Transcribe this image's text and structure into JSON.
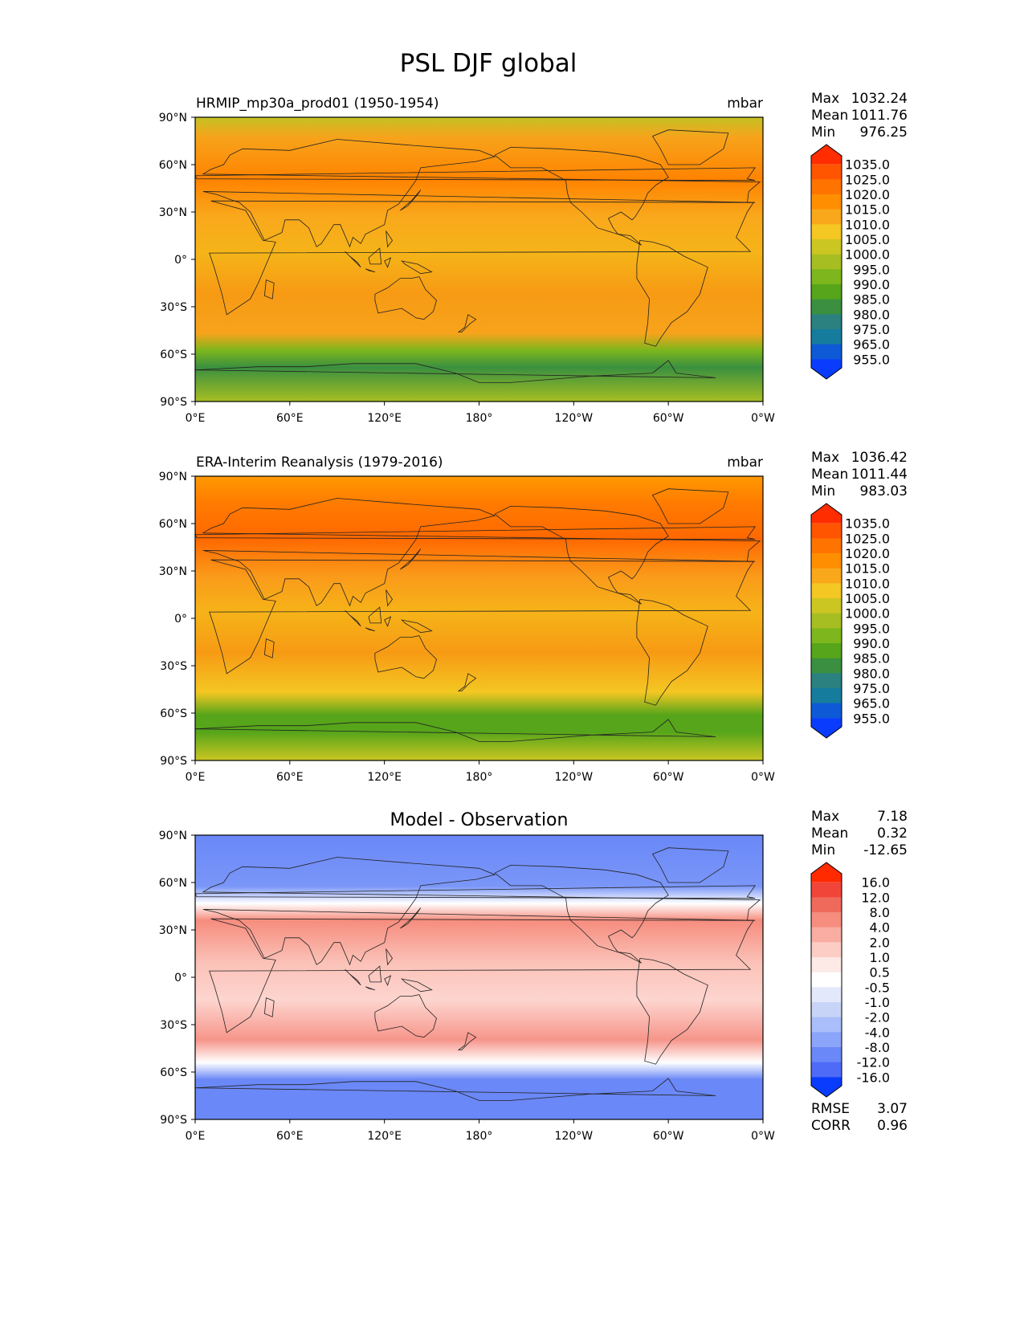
{
  "figure_title": "PSL DJF global",
  "chart_data": [
    {
      "type": "heatmap",
      "title": "HRMIP_mp30a_prod01 (1950-1954)",
      "units": "mbar",
      "stats": {
        "max": "1032.24",
        "mean": "1011.76",
        "min": "976.25"
      },
      "stat_labels": {
        "max": "Max",
        "mean": "Mean",
        "min": "Min"
      },
      "xticks": [
        "0°E",
        "60°E",
        "120°E",
        "180°",
        "120°W",
        "60°W",
        "0°W"
      ],
      "yticks": [
        "90°N",
        "60°N",
        "30°N",
        "0°",
        "30°S",
        "60°S",
        "90°S"
      ],
      "x_range": [
        0,
        360
      ],
      "y_range": [
        -90,
        90
      ],
      "colorbar": {
        "levels": [
          "1035.0",
          "1025.0",
          "1020.0",
          "1015.0",
          "1010.0",
          "1005.0",
          "1000.0",
          "995.0",
          "990.0",
          "985.0",
          "980.0",
          "975.0",
          "965.0",
          "955.0"
        ]
      },
      "colors": [
        "#ff2d00",
        "#ff5500",
        "#ff7400",
        "#ff8f00",
        "#f9a81c",
        "#f4c722",
        "#ccc622",
        "#a7be22",
        "#7db61d",
        "#56a51a",
        "#3a9040",
        "#2b8080",
        "#157c9e",
        "#0e5ad6",
        "#0a3cfd"
      ]
    },
    {
      "type": "heatmap",
      "title": "ERA-Interim Reanalysis (1979-2016)",
      "units": "mbar",
      "stats": {
        "max": "1036.42",
        "mean": "1011.44",
        "min": "983.03"
      },
      "stat_labels": {
        "max": "Max",
        "mean": "Mean",
        "min": "Min"
      },
      "xticks": [
        "0°E",
        "60°E",
        "120°E",
        "180°",
        "120°W",
        "60°W",
        "0°W"
      ],
      "yticks": [
        "90°N",
        "60°N",
        "30°N",
        "0°",
        "30°S",
        "60°S",
        "90°S"
      ],
      "x_range": [
        0,
        360
      ],
      "y_range": [
        -90,
        90
      ],
      "colorbar": {
        "levels": [
          "1035.0",
          "1025.0",
          "1020.0",
          "1015.0",
          "1010.0",
          "1005.0",
          "1000.0",
          "995.0",
          "990.0",
          "985.0",
          "980.0",
          "975.0",
          "965.0",
          "955.0"
        ]
      },
      "colors": [
        "#ff2d00",
        "#ff5500",
        "#ff7400",
        "#ff8f00",
        "#f9a81c",
        "#f4c722",
        "#ccc622",
        "#a7be22",
        "#7db61d",
        "#56a51a",
        "#3a9040",
        "#2b8080",
        "#157c9e",
        "#0e5ad6",
        "#0a3cfd"
      ]
    },
    {
      "type": "heatmap",
      "title": "Model - Observation",
      "units": "",
      "stats": {
        "max": "7.18",
        "mean": "0.32",
        "min": "-12.65"
      },
      "stat_labels": {
        "max": "Max",
        "mean": "Mean",
        "min": "Min"
      },
      "extra_stats": {
        "rmse_label": "RMSE",
        "rmse": "3.07",
        "corr_label": "CORR",
        "corr": "0.96"
      },
      "xticks": [
        "0°E",
        "60°E",
        "120°E",
        "180°",
        "120°W",
        "60°W",
        "0°W"
      ],
      "yticks": [
        "90°N",
        "60°N",
        "30°N",
        "0°",
        "30°S",
        "60°S",
        "90°S"
      ],
      "x_range": [
        0,
        360
      ],
      "y_range": [
        -90,
        90
      ],
      "colorbar": {
        "levels": [
          "16.0",
          "12.0",
          "8.0",
          "4.0",
          "2.0",
          "1.0",
          "0.5",
          "-0.5",
          "-1.0",
          "-2.0",
          "-4.0",
          "-8.0",
          "-12.0",
          "-16.0"
        ]
      },
      "colors": [
        "#ff2a00",
        "#f2453a",
        "#f06a5c",
        "#f68d7e",
        "#f9ada2",
        "#fccdc5",
        "#fde9e5",
        "#ffffff",
        "#e3e9fb",
        "#c7d4f7",
        "#a9befa",
        "#8aa5fa",
        "#6a88f7",
        "#4d6bf7",
        "#0a3cfd"
      ]
    }
  ]
}
